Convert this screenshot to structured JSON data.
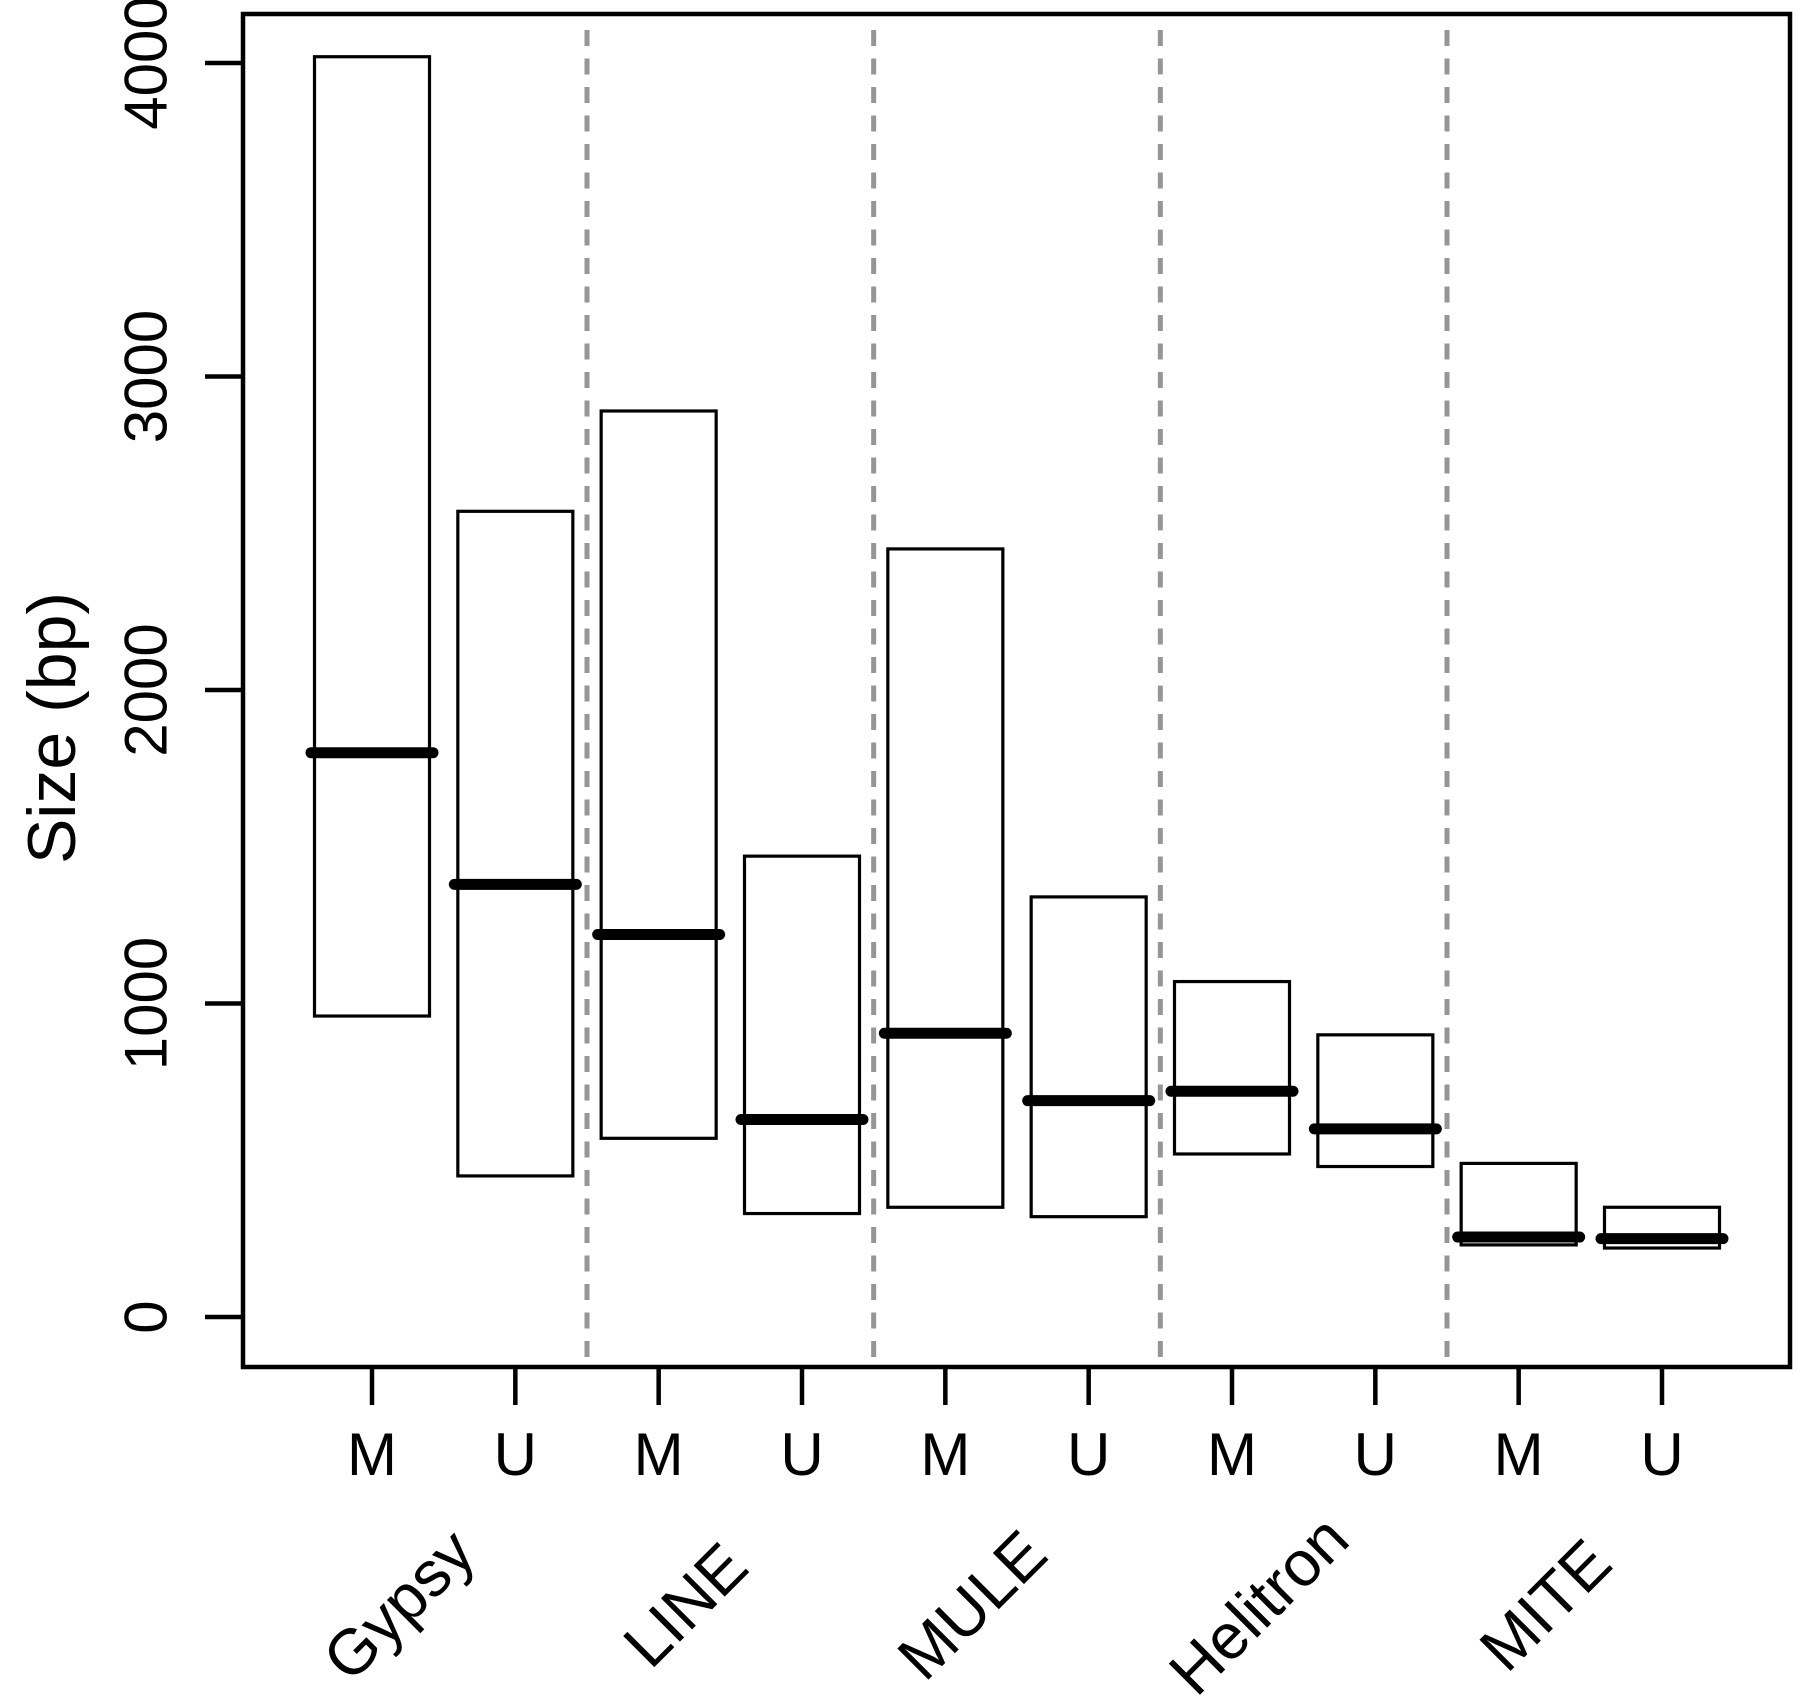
{
  "figure": {
    "background": "#ffffff",
    "axis_color": "#000000",
    "box_color": "#000000",
    "median_color": "#000000",
    "separator_color": "#969696"
  },
  "chart_data": {
    "type": "boxplot",
    "title": "",
    "xlabel": "",
    "ylabel": "Size (bp)",
    "ylim": [
      0,
      4000
    ],
    "yticks": [
      0,
      1000,
      2000,
      3000,
      4000
    ],
    "ytick_labels": [
      "0",
      "1000",
      "2000",
      "3000",
      "4000"
    ],
    "grid": false,
    "legend_position": "none",
    "groups": [
      "Gypsy",
      "LINE",
      "MULE",
      "Helitron",
      "MITE"
    ],
    "subgroup_labels": [
      "M",
      "U"
    ],
    "group_separators": true,
    "boxes": [
      {
        "group": "Gypsy",
        "condition": "M",
        "q1": 960,
        "median": 1800,
        "q3": 4020
      },
      {
        "group": "Gypsy",
        "condition": "U",
        "q1": 450,
        "median": 1380,
        "q3": 2570
      },
      {
        "group": "LINE",
        "condition": "M",
        "q1": 570,
        "median": 1220,
        "q3": 2890
      },
      {
        "group": "LINE",
        "condition": "U",
        "q1": 330,
        "median": 630,
        "q3": 1470
      },
      {
        "group": "MULE",
        "condition": "M",
        "q1": 350,
        "median": 905,
        "q3": 2450
      },
      {
        "group": "MULE",
        "condition": "U",
        "q1": 320,
        "median": 690,
        "q3": 1340
      },
      {
        "group": "Helitron",
        "condition": "M",
        "q1": 520,
        "median": 720,
        "q3": 1070
      },
      {
        "group": "Helitron",
        "condition": "U",
        "q1": 480,
        "median": 600,
        "q3": 900
      },
      {
        "group": "MITE",
        "condition": "M",
        "q1": 230,
        "median": 255,
        "q3": 490
      },
      {
        "group": "MITE",
        "condition": "U",
        "q1": 220,
        "median": 250,
        "q3": 350
      }
    ]
  }
}
